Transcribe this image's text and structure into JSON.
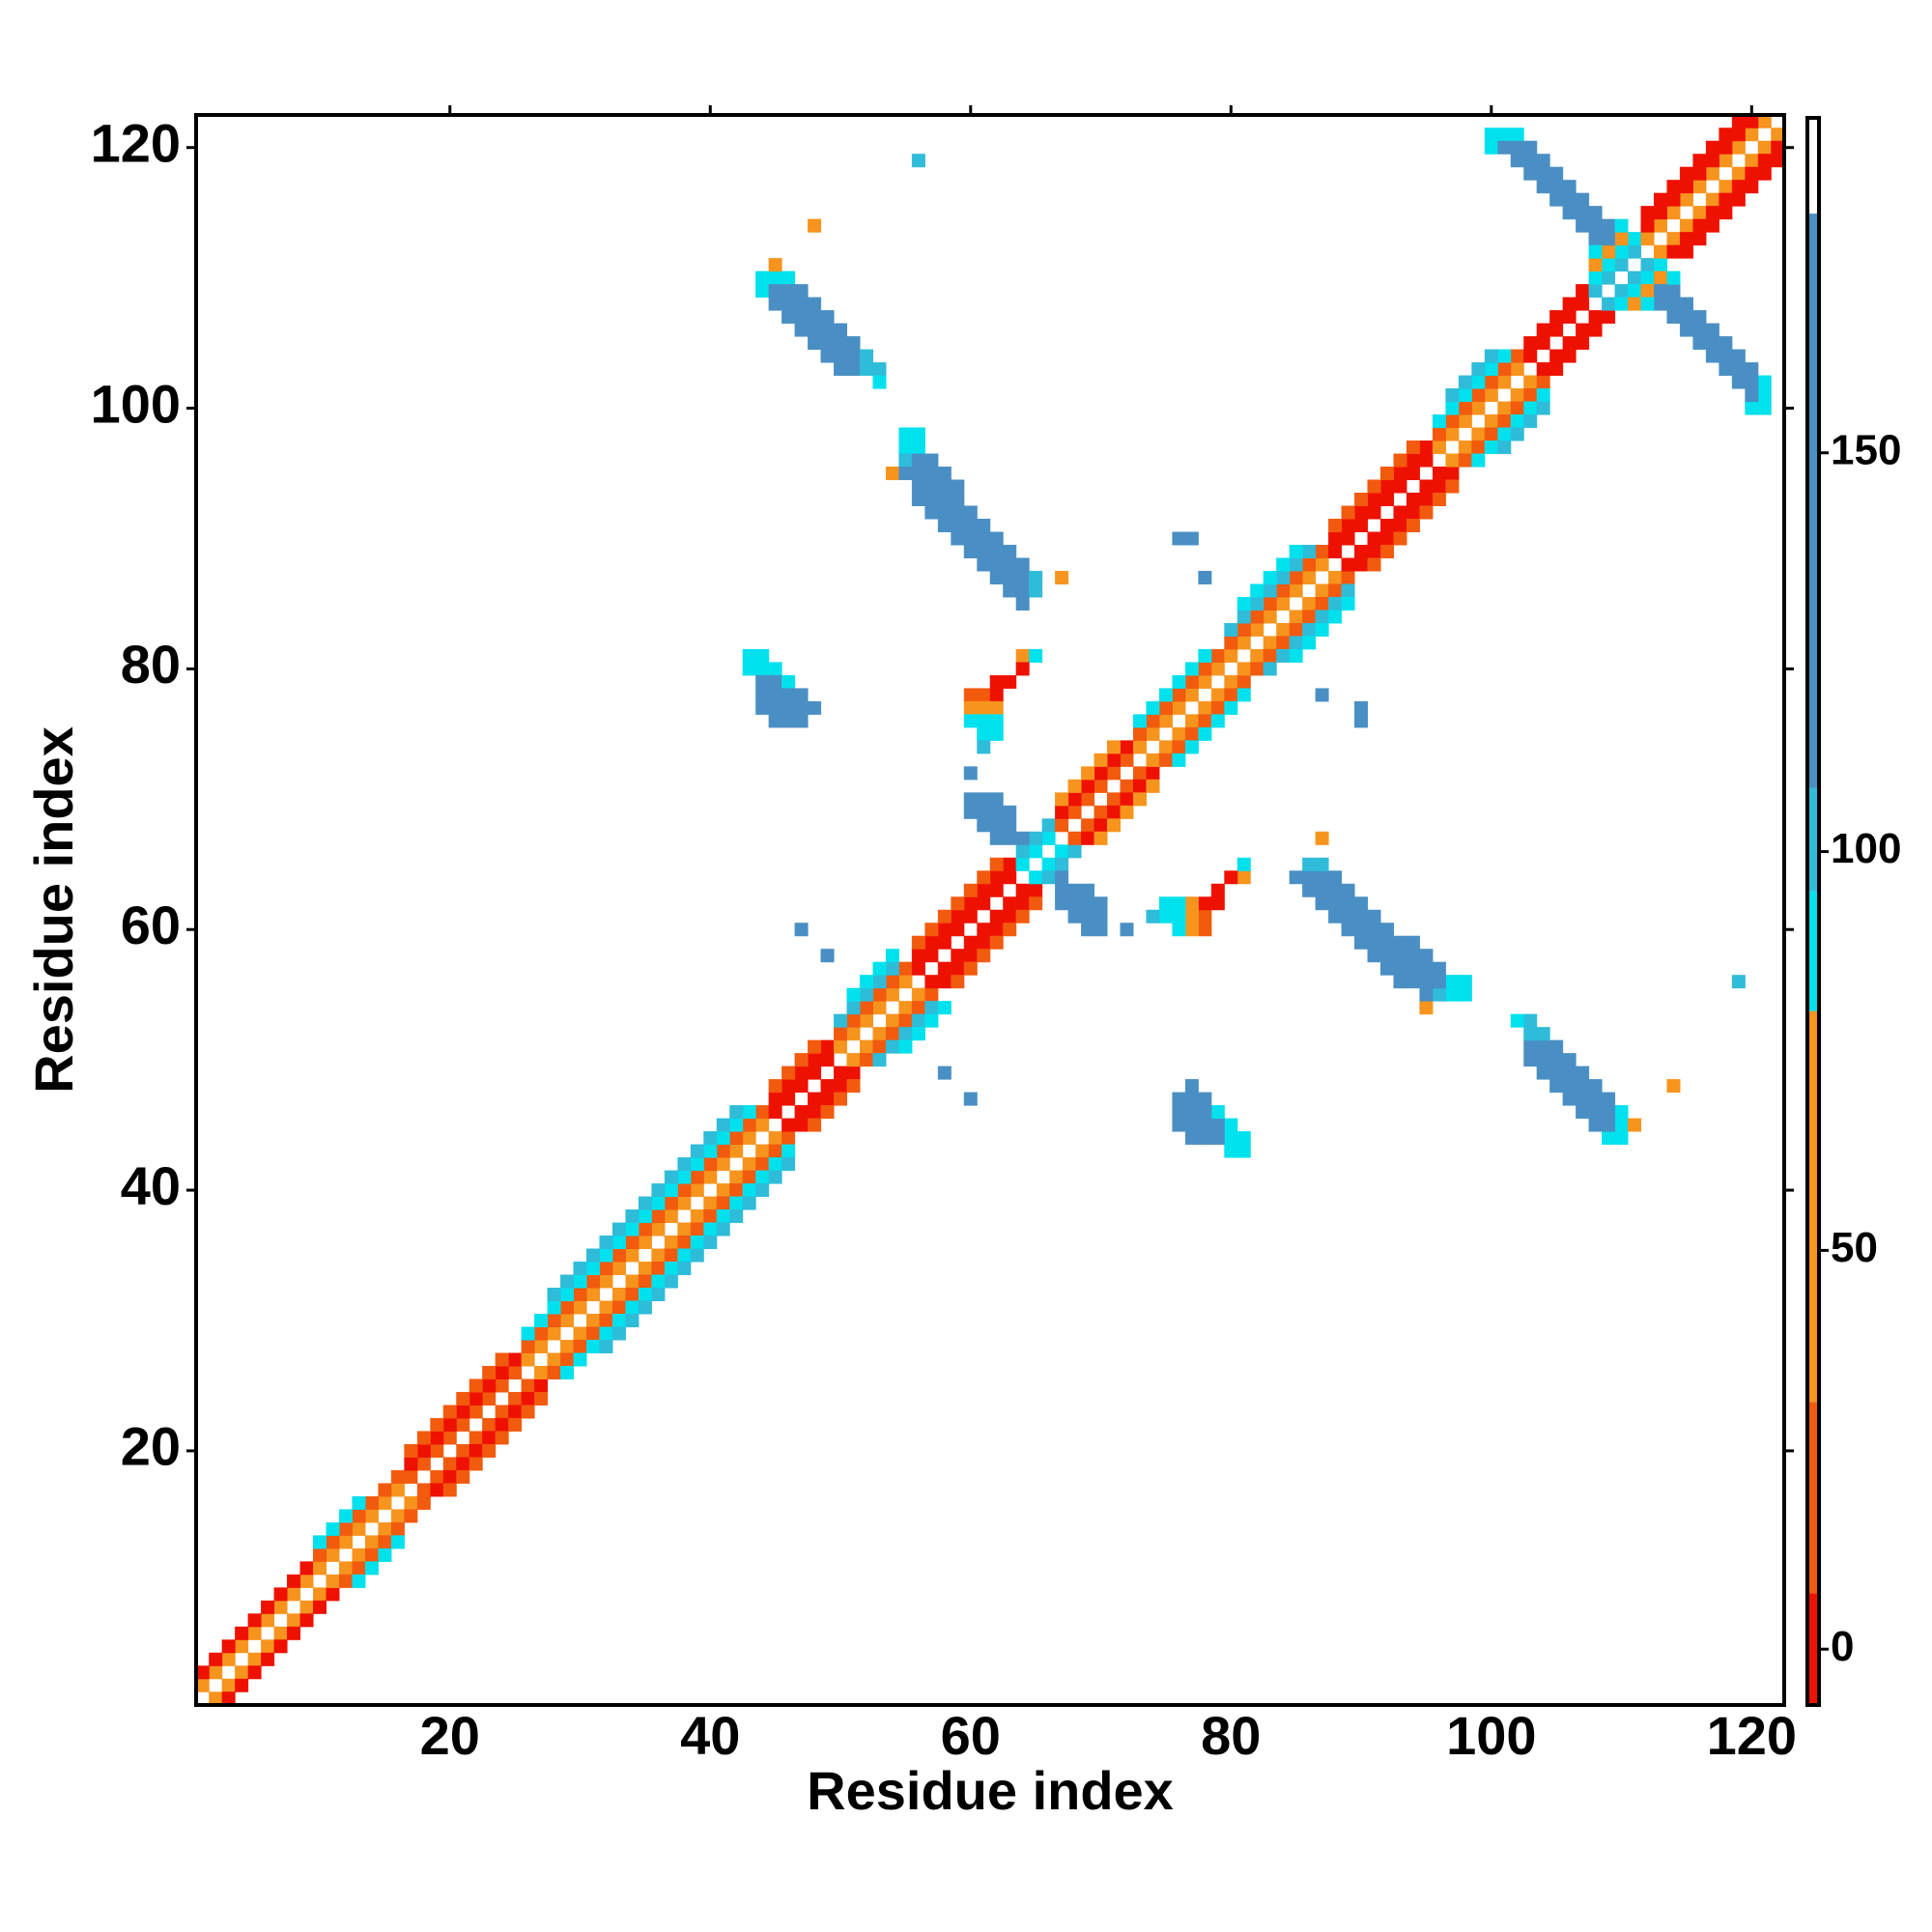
{
  "chart_data": {
    "type": "heatmap",
    "x_label": "Residue index",
    "y_label": "Residue index",
    "xlim": [
      0.5,
      122.5
    ],
    "ylim": [
      0.5,
      122.5
    ],
    "xticks": [
      20,
      40,
      60,
      80,
      100,
      120
    ],
    "yticks": [
      20,
      40,
      60,
      80,
      100,
      120
    ],
    "symmetric": true,
    "diagonal_runs": [
      [
        1,
        9,
        1,
        50
      ],
      [
        1,
        9,
        2,
        0
      ],
      [
        10,
        16,
        1,
        50
      ],
      [
        10,
        16,
        2,
        20
      ],
      [
        10,
        13,
        3,
        90
      ],
      [
        17,
        25,
        1,
        20
      ],
      [
        17,
        25,
        2,
        0
      ],
      [
        17,
        24,
        3,
        20
      ],
      [
        26,
        44,
        1,
        50
      ],
      [
        26,
        44,
        2,
        20
      ],
      [
        26,
        43,
        3,
        90
      ],
      [
        28,
        42,
        4,
        105
      ],
      [
        45,
        49,
        1,
        0
      ],
      [
        45,
        49,
        2,
        0
      ],
      [
        45,
        48,
        3,
        20
      ],
      [
        50,
        55,
        1,
        50
      ],
      [
        50,
        55,
        2,
        20
      ],
      [
        50,
        54,
        3,
        105
      ],
      [
        51,
        54,
        4,
        90
      ],
      [
        56,
        63,
        1,
        0
      ],
      [
        56,
        63,
        2,
        0
      ],
      [
        56,
        62,
        3,
        20
      ],
      [
        64,
        66,
        1,
        90
      ],
      [
        64,
        66,
        2,
        105
      ],
      [
        67,
        72,
        1,
        20
      ],
      [
        67,
        72,
        2,
        0
      ],
      [
        67,
        71,
        3,
        50
      ],
      [
        73,
        79,
        1,
        50
      ],
      [
        73,
        79,
        2,
        20
      ],
      [
        73,
        78,
        3,
        90
      ],
      [
        80,
        87,
        1,
        50
      ],
      [
        80,
        87,
        2,
        20
      ],
      [
        80,
        86,
        3,
        105
      ],
      [
        81,
        85,
        4,
        90
      ],
      [
        88,
        95,
        1,
        0
      ],
      [
        88,
        95,
        2,
        0
      ],
      [
        88,
        94,
        3,
        20
      ],
      [
        96,
        102,
        1,
        50
      ],
      [
        96,
        102,
        2,
        20
      ],
      [
        96,
        101,
        3,
        90
      ],
      [
        97,
        100,
        4,
        105
      ],
      [
        103,
        107,
        1,
        0
      ],
      [
        103,
        107,
        2,
        0
      ],
      [
        108,
        111,
        1,
        105
      ],
      [
        108,
        111,
        2,
        90
      ],
      [
        108,
        110,
        3,
        50
      ],
      [
        112,
        121,
        1,
        50
      ],
      [
        112,
        120,
        2,
        0
      ],
      [
        112,
        119,
        3,
        0
      ]
    ],
    "patches": [
      [
        44,
        46,
        110,
        90
      ],
      [
        44,
        44,
        109,
        90
      ],
      [
        45,
        47,
        109,
        140
      ],
      [
        45,
        48,
        108,
        140
      ],
      [
        46,
        49,
        107,
        140
      ],
      [
        47,
        50,
        106,
        140
      ],
      [
        48,
        51,
        105,
        140
      ],
      [
        49,
        51,
        104,
        140
      ],
      [
        52,
        52,
        104,
        105
      ],
      [
        50,
        51,
        103,
        140
      ],
      [
        52,
        53,
        103,
        105
      ],
      [
        53,
        53,
        102,
        90
      ],
      [
        45,
        45,
        111,
        50
      ],
      [
        48,
        48,
        114,
        50
      ],
      [
        56,
        56,
        119,
        105
      ],
      [
        55,
        56,
        98,
        90
      ],
      [
        55,
        56,
        97,
        90
      ],
      [
        55,
        55,
        96,
        105
      ],
      [
        56,
        57,
        96,
        140
      ],
      [
        54,
        54,
        95,
        50
      ],
      [
        55,
        58,
        95,
        140
      ],
      [
        56,
        59,
        94,
        140
      ],
      [
        56,
        59,
        93,
        140
      ],
      [
        57,
        60,
        92,
        140
      ],
      [
        58,
        61,
        91,
        140
      ],
      [
        59,
        62,
        90,
        140
      ],
      [
        60,
        63,
        89,
        140
      ],
      [
        61,
        64,
        88,
        140
      ],
      [
        62,
        64,
        87,
        140
      ],
      [
        65,
        65,
        87,
        105
      ],
      [
        67,
        67,
        87,
        50
      ],
      [
        63,
        64,
        86,
        140
      ],
      [
        65,
        65,
        86,
        105
      ],
      [
        64,
        64,
        85,
        140
      ],
      [
        43,
        44,
        81,
        90
      ],
      [
        43,
        45,
        80,
        90
      ],
      [
        44,
        45,
        79,
        140
      ],
      [
        46,
        46,
        79,
        90
      ],
      [
        44,
        47,
        78,
        140
      ],
      [
        44,
        48,
        77,
        140
      ],
      [
        45,
        47,
        76,
        140
      ],
      [
        64,
        64,
        81,
        50
      ],
      [
        65,
        65,
        81,
        90
      ],
      [
        64,
        64,
        80,
        0
      ],
      [
        62,
        63,
        79,
        0
      ],
      [
        60,
        61,
        78,
        20
      ],
      [
        62,
        62,
        78,
        0
      ],
      [
        60,
        62,
        77,
        50
      ],
      [
        60,
        62,
        76,
        90
      ],
      [
        61,
        62,
        75,
        90
      ],
      [
        61,
        61,
        74,
        105
      ],
      [
        60,
        60,
        72,
        140
      ],
      [
        60,
        62,
        70,
        140
      ],
      [
        60,
        63,
        69,
        140
      ],
      [
        61,
        63,
        68,
        140
      ],
      [
        62,
        64,
        67,
        140
      ],
      [
        76,
        77,
        90,
        140
      ],
      [
        78,
        78,
        87,
        140
      ],
      [
        47,
        47,
        60,
        140
      ],
      [
        49,
        49,
        58,
        140
      ],
      [
        100,
        102,
        121,
        90
      ],
      [
        100,
        100,
        120,
        90
      ],
      [
        101,
        103,
        120,
        140
      ],
      [
        102,
        104,
        119,
        140
      ],
      [
        103,
        105,
        118,
        140
      ],
      [
        104,
        106,
        117,
        140
      ],
      [
        105,
        107,
        116,
        140
      ],
      [
        106,
        108,
        115,
        140
      ],
      [
        107,
        109,
        114,
        140
      ],
      [
        110,
        110,
        114,
        90
      ],
      [
        108,
        109,
        113,
        140
      ],
      [
        108,
        108,
        112,
        90
      ]
    ],
    "colorbar": {
      "lim": [
        -7,
        192
      ],
      "ticks": [
        0,
        50,
        100,
        150
      ],
      "bins": [
        {
          "range": [
            -7,
            7
          ],
          "color": "#ee1100"
        },
        {
          "range": [
            7,
            31
          ],
          "color": "#f25a0e"
        },
        {
          "range": [
            31,
            80
          ],
          "color": "#f7941d"
        },
        {
          "range": [
            80,
            95
          ],
          "color": "#00e1ee"
        },
        {
          "range": [
            95,
            108
          ],
          "color": "#2fbcd9"
        },
        {
          "range": [
            108,
            180
          ],
          "color": "#4a8fc4"
        },
        {
          "range": [
            180,
            192
          ],
          "color": "#ffffff"
        }
      ]
    }
  }
}
